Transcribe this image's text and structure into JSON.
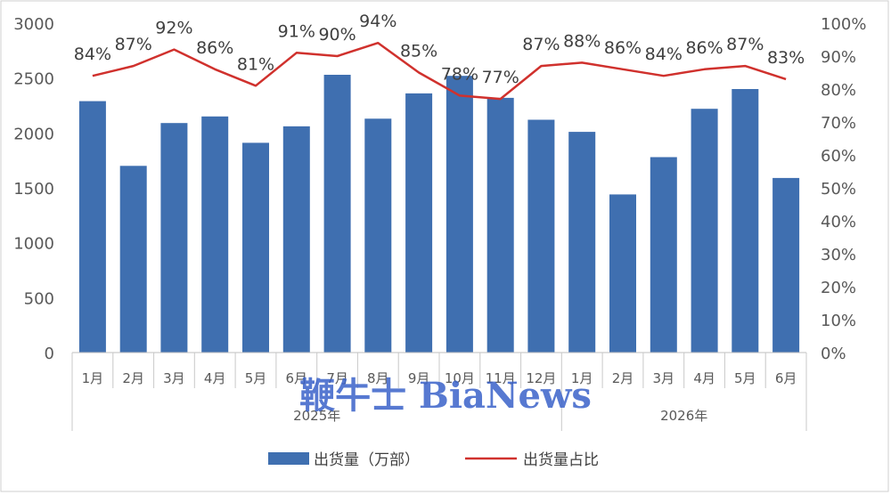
{
  "chart_data": {
    "type": "bar+line",
    "categories": [
      "1月",
      "2月",
      "3月",
      "4月",
      "5月",
      "6月",
      "7月",
      "8月",
      "9月",
      "10月",
      "11月",
      "12月",
      "1月",
      "2月",
      "3月",
      "4月",
      "5月",
      "6月"
    ],
    "groups": [
      {
        "label": "2025年",
        "count": 12
      },
      {
        "label": "2026年",
        "count": 6
      }
    ],
    "series": [
      {
        "name": "出货量（万部）",
        "type": "bar",
        "axis": "left",
        "color": "#3f6fb0",
        "values": [
          2290,
          1700,
          2090,
          2150,
          1910,
          2060,
          2530,
          2130,
          2360,
          2520,
          2320,
          2120,
          2010,
          1440,
          1780,
          2220,
          2400,
          1590
        ]
      },
      {
        "name": "出货量占比",
        "type": "line",
        "axis": "right",
        "color": "#d0312d",
        "values": [
          84,
          87,
          92,
          86,
          81,
          91,
          90,
          94,
          85,
          78,
          77,
          87,
          88,
          86,
          84,
          86,
          87,
          83
        ],
        "labels": [
          "84%",
          "87%",
          "92%",
          "86%",
          "81%",
          "91%",
          "90%",
          "94%",
          "85%",
          "78%",
          "77%",
          "87%",
          "88%",
          "86%",
          "84%",
          "86%",
          "87%",
          "83%"
        ]
      }
    ],
    "y_left": {
      "min": 0,
      "max": 3000,
      "ticks": [
        "0",
        "500",
        "1000",
        "1500",
        "2000",
        "2500",
        "3000"
      ]
    },
    "y_right": {
      "min": 0,
      "max": 100,
      "ticks": [
        "0%",
        "10%",
        "20%",
        "30%",
        "40%",
        "50%",
        "60%",
        "70%",
        "80%",
        "90%",
        "100%"
      ]
    },
    "legend_position": "bottom",
    "grid": false,
    "watermark": "鞭牛士 BiaNews"
  }
}
